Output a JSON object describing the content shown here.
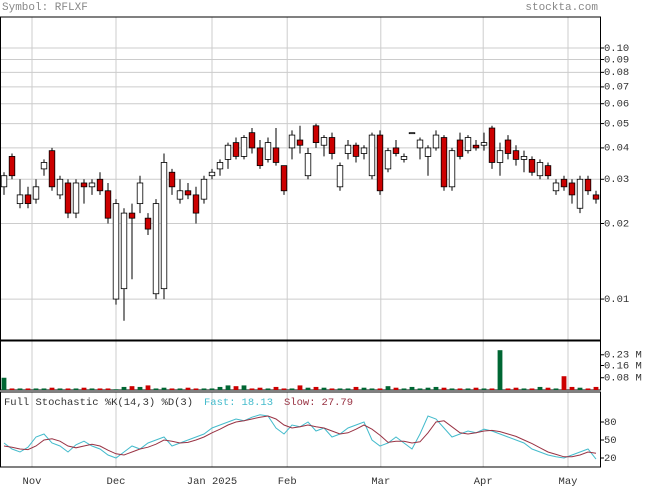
{
  "header": {
    "symbol": "Symbol: RFLXF",
    "site": "stockta.com"
  },
  "chart_data": [
    {
      "type": "candlestick",
      "log_scale": true,
      "grid": true,
      "up_color": "#ffffff",
      "down_color": "#cc0000",
      "xlim": [
        -0.5,
        74.5
      ],
      "xticks": [
        {
          "value": 3.5,
          "label": "Nov"
        },
        {
          "value": 14,
          "label": "Dec"
        },
        {
          "value": 26,
          "label": "Jan 2025"
        },
        {
          "value": 35.4,
          "label": "Feb"
        },
        {
          "value": 47.1,
          "label": "Mar"
        },
        {
          "value": 59.9,
          "label": "Apr"
        },
        {
          "value": 70.5,
          "label": "May"
        }
      ],
      "ylim": [
        0.00687,
        0.1329
      ],
      "yticks": [
        {
          "value": 0.1,
          "label": "0.10"
        },
        0.09,
        0.08,
        0.07,
        0.06,
        0.05,
        0.04,
        0.03,
        0.02,
        0.01
      ],
      "open": [
        0.028,
        0.037,
        0.024,
        0.026,
        0.025,
        0.033,
        0.039,
        0.026,
        0.029,
        0.022,
        0.029,
        0.028,
        0.03,
        0.027,
        0.01,
        0.011,
        0.022,
        0.024,
        0.021,
        0.0105,
        0.011,
        0.032,
        0.025,
        0.027,
        0.026,
        0.025,
        0.031,
        0.033,
        0.036,
        0.042,
        0.037,
        0.046,
        0.04,
        0.036,
        0.04,
        0.034,
        0.04,
        0.043,
        0.031,
        0.049,
        0.041,
        0.044,
        0.028,
        0.038,
        0.041,
        0.038,
        0.031,
        0.045,
        0.033,
        0.04,
        0.036,
        0.046,
        0.04,
        0.037,
        0.04,
        0.044,
        0.028,
        0.043,
        0.039,
        0.041,
        0.041,
        0.048,
        0.035,
        0.043,
        0.039,
        0.036,
        0.036,
        0.031,
        0.034,
        0.027,
        0.03,
        0.029,
        0.023,
        0.03,
        0.026
      ],
      "high": [
        0.032,
        0.038,
        0.03,
        0.028,
        0.03,
        0.036,
        0.04,
        0.031,
        0.03,
        0.03,
        0.03,
        0.03,
        0.032,
        0.029,
        0.025,
        0.023,
        0.024,
        0.031,
        0.022,
        0.025,
        0.038,
        0.033,
        0.03,
        0.029,
        0.028,
        0.031,
        0.033,
        0.036,
        0.042,
        0.044,
        0.045,
        0.048,
        0.043,
        0.044,
        0.048,
        0.034,
        0.047,
        0.049,
        0.04,
        0.05,
        0.045,
        0.046,
        0.035,
        0.043,
        0.042,
        0.041,
        0.046,
        0.047,
        0.04,
        0.043,
        0.038,
        0.046,
        0.044,
        0.041,
        0.047,
        0.045,
        0.04,
        0.046,
        0.045,
        0.043,
        0.046,
        0.049,
        0.042,
        0.045,
        0.041,
        0.039,
        0.037,
        0.036,
        0.035,
        0.03,
        0.031,
        0.03,
        0.031,
        0.031,
        0.027
      ],
      "low": [
        0.026,
        0.03,
        0.023,
        0.023,
        0.024,
        0.031,
        0.027,
        0.025,
        0.021,
        0.021,
        0.024,
        0.026,
        0.026,
        0.02,
        0.0095,
        0.0082,
        0.012,
        0.022,
        0.018,
        0.01,
        0.01,
        0.026,
        0.024,
        0.025,
        0.02,
        0.024,
        0.03,
        0.031,
        0.033,
        0.036,
        0.036,
        0.038,
        0.033,
        0.035,
        0.034,
        0.026,
        0.036,
        0.038,
        0.03,
        0.04,
        0.037,
        0.036,
        0.027,
        0.036,
        0.035,
        0.036,
        0.03,
        0.026,
        0.032,
        0.037,
        0.035,
        0.046,
        0.036,
        0.031,
        0.039,
        0.027,
        0.027,
        0.036,
        0.038,
        0.039,
        0.039,
        0.033,
        0.031,
        0.036,
        0.034,
        0.032,
        0.031,
        0.03,
        0.03,
        0.026,
        0.027,
        0.024,
        0.022,
        0.026,
        0.024
      ],
      "close": [
        0.031,
        0.031,
        0.026,
        0.024,
        0.028,
        0.035,
        0.028,
        0.03,
        0.022,
        0.029,
        0.028,
        0.029,
        0.027,
        0.021,
        0.024,
        0.022,
        0.021,
        0.029,
        0.019,
        0.024,
        0.035,
        0.028,
        0.027,
        0.026,
        0.022,
        0.03,
        0.032,
        0.035,
        0.041,
        0.037,
        0.044,
        0.04,
        0.034,
        0.042,
        0.035,
        0.027,
        0.045,
        0.041,
        0.038,
        0.042,
        0.044,
        0.038,
        0.034,
        0.041,
        0.037,
        0.04,
        0.045,
        0.027,
        0.039,
        0.038,
        0.037,
        0.046,
        0.043,
        0.04,
        0.045,
        0.028,
        0.039,
        0.037,
        0.044,
        0.04,
        0.042,
        0.035,
        0.039,
        0.038,
        0.036,
        0.037,
        0.032,
        0.035,
        0.031,
        0.029,
        0.028,
        0.026,
        0.03,
        0.027,
        0.025
      ]
    },
    {
      "type": "bar",
      "up_color": "#006633",
      "down_color": "#cc0000",
      "ylim": [
        0,
        0.32
      ],
      "yticks": [
        {
          "value": 0.23,
          "label": "0.23 M"
        },
        {
          "value": 0.16,
          "label": "0.16 M"
        },
        {
          "value": 0.08,
          "label": "0.08 M"
        }
      ],
      "values": [
        0.08,
        0.01,
        0.01,
        0.01,
        0.01,
        0.01,
        0.015,
        0.01,
        0.01,
        0.01,
        0.015,
        0.01,
        0.01,
        0.01,
        0.005,
        0.02,
        0.025,
        0.02,
        0.03,
        0.01,
        0.015,
        0.01,
        0.01,
        0.015,
        0.01,
        0.01,
        0.01,
        0.02,
        0.03,
        0.025,
        0.03,
        0.01,
        0.015,
        0.01,
        0.02,
        0.01,
        0.01,
        0.03,
        0.015,
        0.02,
        0.015,
        0.01,
        0.01,
        0.01,
        0.02,
        0.015,
        0.01,
        0.01,
        0.025,
        0.015,
        0.01,
        0.02,
        0.01,
        0.015,
        0.02,
        0.015,
        0.01,
        0.01,
        0.01,
        0.015,
        0.01,
        0.01,
        0.26,
        0.01,
        0.015,
        0.01,
        0.01,
        0.02,
        0.015,
        0.01,
        0.09,
        0.02,
        0.015,
        0.01,
        0.02
      ]
    },
    {
      "type": "line",
      "title": "Full Stochastic %K(14,3) %D(3)",
      "ylim": [
        5,
        130
      ],
      "yticks": [
        80,
        50,
        20
      ],
      "series": [
        {
          "name": "Fast:",
          "last": 18.13,
          "color": "#44bbcc",
          "values": [
            45,
            35,
            30,
            38,
            55,
            60,
            45,
            40,
            30,
            42,
            48,
            40,
            35,
            25,
            20,
            30,
            40,
            35,
            45,
            50,
            55,
            40,
            45,
            50,
            55,
            60,
            70,
            75,
            80,
            85,
            82,
            88,
            92,
            90,
            70,
            60,
            75,
            72,
            80,
            65,
            70,
            55,
            60,
            70,
            75,
            80,
            50,
            40,
            45,
            55,
            45,
            35,
            60,
            90,
            85,
            70,
            55,
            60,
            65,
            62,
            68,
            65,
            60,
            55,
            50,
            45,
            35,
            30,
            25,
            22,
            20,
            25,
            30,
            35,
            18.13
          ]
        },
        {
          "name": "Slow:",
          "last": 27.79,
          "color": "#993344",
          "values": [
            40,
            38,
            35,
            34,
            40,
            50,
            52,
            48,
            40,
            37,
            40,
            43,
            40,
            33,
            27,
            25,
            30,
            35,
            38,
            43,
            50,
            48,
            45,
            46,
            50,
            55,
            62,
            68,
            75,
            80,
            82,
            85,
            88,
            90,
            85,
            75,
            70,
            72,
            75,
            72,
            70,
            65,
            60,
            62,
            68,
            75,
            68,
            58,
            46,
            48,
            48,
            45,
            47,
            62,
            80,
            82,
            72,
            62,
            60,
            62,
            65,
            66,
            64,
            60,
            56,
            50,
            44,
            37,
            30,
            26,
            22,
            22,
            25,
            30,
            27.79
          ]
        }
      ]
    }
  ]
}
